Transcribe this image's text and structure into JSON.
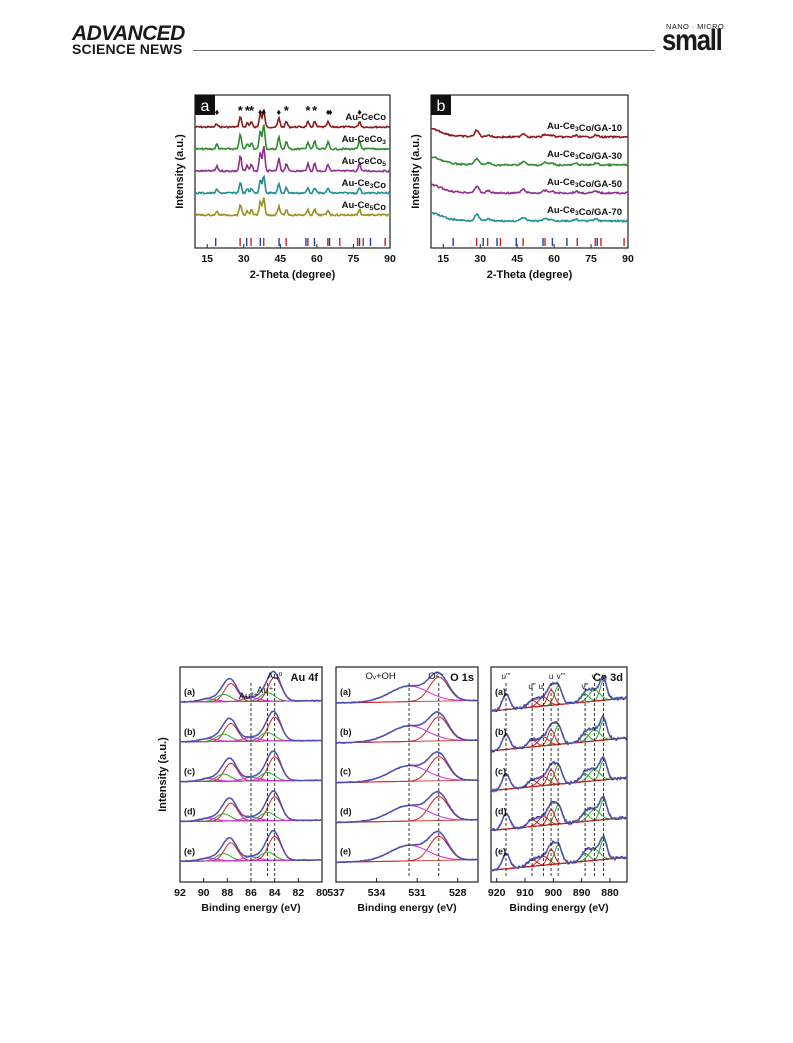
{
  "header": {
    "brand_line1": "ADVANCED",
    "brand_line2": "SCIENCE NEWS",
    "journal_top": "NANO · MICRO",
    "journal_name": "small"
  },
  "chart_data": [
    {
      "type": "line",
      "panel_label": "a",
      "xlabel": "2-Theta (degree)",
      "ylabel": "Intensity (a.u.)",
      "xlim": [
        10,
        90
      ],
      "xticks": [
        15,
        30,
        45,
        60,
        75,
        90
      ],
      "series": [
        {
          "name": "Au-CeCo",
          "color": "#8b1a1a"
        },
        {
          "name": "Au-CeCo3",
          "color": "#2e8b2e"
        },
        {
          "name": "Au-CeCo5",
          "color": "#8e2f8e"
        },
        {
          "name": "Au-Ce3Co",
          "color": "#1f8f93"
        },
        {
          "name": "Au-Ce5Co",
          "color": "#9a8f22"
        }
      ],
      "markers": [
        {
          "symbol": "♦",
          "x": 19.0
        },
        {
          "symbol": "*",
          "x": 28.6
        },
        {
          "symbol": "*",
          "x": 31.5
        },
        {
          "symbol": "*",
          "x": 33.2
        },
        {
          "symbol": "♦",
          "x": 36.8
        },
        {
          "symbol": "♦",
          "x": 38.2
        },
        {
          "symbol": "♦",
          "x": 44.4
        },
        {
          "symbol": "*",
          "x": 47.5
        },
        {
          "symbol": "*",
          "x": 56.3
        },
        {
          "symbol": "*",
          "x": 59.1
        },
        {
          "symbol": "♦",
          "x": 64.6
        },
        {
          "symbol": "♦",
          "x": 65.5
        },
        {
          "symbol": "♦",
          "x": 77.5
        }
      ]
    },
    {
      "type": "line",
      "panel_label": "b",
      "xlabel": "2-Theta (degree)",
      "ylabel": "Intensity (a.u.)",
      "xlim": [
        10,
        90
      ],
      "xticks": [
        15,
        30,
        45,
        60,
        75,
        90
      ],
      "series": [
        {
          "name": "Au-Ce3Co/GA-10",
          "color": "#8b1a1a"
        },
        {
          "name": "Au-Ce3Co/GA-30",
          "color": "#2e8b2e"
        },
        {
          "name": "Au-Ce3Co/GA-50",
          "color": "#8e2f8e"
        },
        {
          "name": "Au-Ce3Co/GA-70",
          "color": "#1f8f93"
        }
      ]
    },
    {
      "type": "line",
      "panel_label": "Au 4f",
      "xlabel": "Binding energy (eV)",
      "ylabel": "Intensity (a.u.)",
      "xlim": [
        92,
        80
      ],
      "xticks": [
        92,
        90,
        88,
        86,
        84,
        82,
        80
      ],
      "peak_labels": [
        "Au⁰",
        "Au⁺",
        "Au³⁺"
      ],
      "series": [
        {
          "name": "(a)"
        },
        {
          "name": "(b)"
        },
        {
          "name": "(c)"
        },
        {
          "name": "(d)"
        },
        {
          "name": "(e)"
        }
      ]
    },
    {
      "type": "line",
      "panel_label": "O 1s",
      "xlabel": "Binding energy (eV)",
      "xlim": [
        537,
        526.5
      ],
      "xticks": [
        537,
        534,
        531,
        528
      ],
      "peak_labels": [
        "Oᵥ+OH",
        "O²⁻"
      ],
      "series": [
        {
          "name": "(a)"
        },
        {
          "name": "(b)"
        },
        {
          "name": "(c)"
        },
        {
          "name": "(d)"
        },
        {
          "name": "(e)"
        }
      ]
    },
    {
      "type": "line",
      "panel_label": "Ce 3d",
      "xlabel": "Binding energy (eV)",
      "xlim": [
        922,
        874
      ],
      "xticks": [
        920,
        910,
        900,
        890,
        880
      ],
      "peak_labels": [
        "u'''",
        "u''",
        "u'",
        "u",
        "v'''",
        "v''",
        "v'",
        "v"
      ],
      "series": [
        {
          "name": "(a)"
        },
        {
          "name": "(b)"
        },
        {
          "name": "(c)"
        },
        {
          "name": "(d)"
        },
        {
          "name": "(e)"
        }
      ]
    }
  ]
}
